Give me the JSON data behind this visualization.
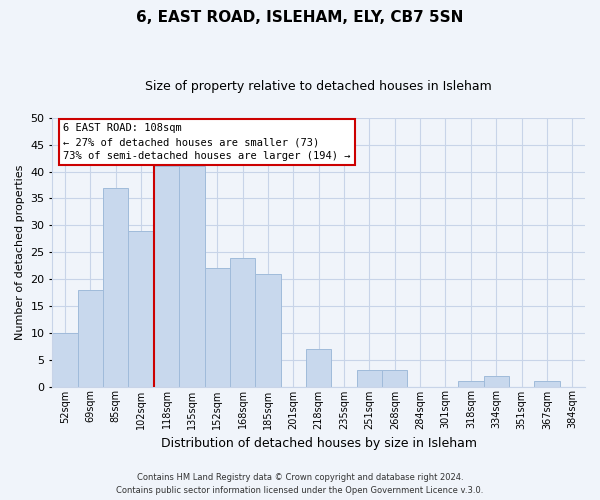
{
  "title": "6, EAST ROAD, ISLEHAM, ELY, CB7 5SN",
  "subtitle": "Size of property relative to detached houses in Isleham",
  "xlabel": "Distribution of detached houses by size in Isleham",
  "ylabel": "Number of detached properties",
  "bar_color": "#c8d8ed",
  "bar_edge_color": "#a0bbda",
  "bins": [
    "52sqm",
    "69sqm",
    "85sqm",
    "102sqm",
    "118sqm",
    "135sqm",
    "152sqm",
    "168sqm",
    "185sqm",
    "201sqm",
    "218sqm",
    "235sqm",
    "251sqm",
    "268sqm",
    "284sqm",
    "301sqm",
    "318sqm",
    "334sqm",
    "351sqm",
    "367sqm",
    "384sqm"
  ],
  "values": [
    10,
    18,
    37,
    29,
    41,
    41,
    22,
    24,
    21,
    0,
    7,
    0,
    3,
    3,
    0,
    0,
    1,
    2,
    0,
    1,
    0
  ],
  "ylim": [
    0,
    50
  ],
  "yticks": [
    0,
    5,
    10,
    15,
    20,
    25,
    30,
    35,
    40,
    45,
    50
  ],
  "property_line_label": "6 EAST ROAD: 108sqm",
  "annotation_line1": "← 27% of detached houses are smaller (73)",
  "annotation_line2": "73% of semi-detached houses are larger (194) →",
  "footer1": "Contains HM Land Registry data © Crown copyright and database right 2024.",
  "footer2": "Contains public sector information licensed under the Open Government Licence v.3.0.",
  "background_color": "#f0f4fa",
  "grid_color": "#c8d4e8",
  "line_color": "#cc0000",
  "title_fontsize": 11,
  "subtitle_fontsize": 9,
  "ylabel_fontsize": 8,
  "xlabel_fontsize": 9
}
